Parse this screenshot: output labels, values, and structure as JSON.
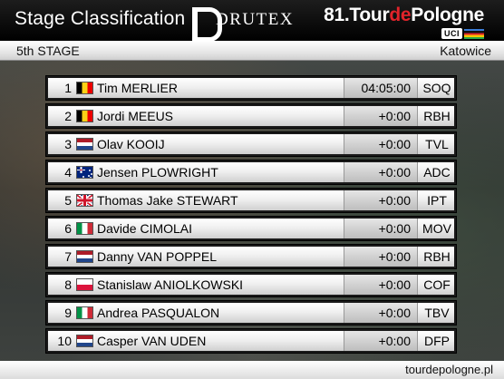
{
  "header": {
    "title": "Stage Classification",
    "sponsor": "DRUTEX",
    "tour_prefix": "81.Tour",
    "tour_accent": "de",
    "tour_suffix": "Pologne",
    "uci_badge": "UCI"
  },
  "stagebar": {
    "stage": "5th STAGE",
    "city": "Katowice"
  },
  "results": [
    {
      "pos": "1",
      "flag": "bel",
      "name": "Tim MERLIER",
      "time": "04:05:00",
      "team": "SOQ"
    },
    {
      "pos": "2",
      "flag": "bel",
      "name": "Jordi MEEUS",
      "time": "+0:00",
      "team": "RBH"
    },
    {
      "pos": "3",
      "flag": "ned",
      "name": "Olav KOOIJ",
      "time": "+0:00",
      "team": "TVL"
    },
    {
      "pos": "4",
      "flag": "aus",
      "name": "Jensen PLOWRIGHT",
      "time": "+0:00",
      "team": "ADC"
    },
    {
      "pos": "5",
      "flag": "gbr",
      "name": "Thomas Jake STEWART",
      "time": "+0:00",
      "team": "IPT"
    },
    {
      "pos": "6",
      "flag": "ita",
      "name": "Davide CIMOLAI",
      "time": "+0:00",
      "team": "MOV"
    },
    {
      "pos": "7",
      "flag": "ned",
      "name": "Danny VAN POPPEL",
      "time": "+0:00",
      "team": "RBH"
    },
    {
      "pos": "8",
      "flag": "pol",
      "name": "Stanislaw ANIOLKOWSKI",
      "time": "+0:00",
      "team": "COF"
    },
    {
      "pos": "9",
      "flag": "ita",
      "name": "Andrea PASQUALON",
      "time": "+0:00",
      "team": "TBV"
    },
    {
      "pos": "10",
      "flag": "ned",
      "name": "Casper VAN UDEN",
      "time": "+0:00",
      "team": "DFP"
    }
  ],
  "footer": {
    "url": "tourdepologne.pl"
  }
}
